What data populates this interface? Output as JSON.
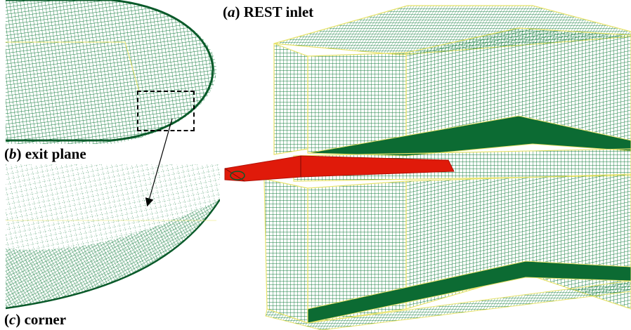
{
  "figure": {
    "panel_a": {
      "letter": "a",
      "caption": "REST inlet"
    },
    "panel_b": {
      "letter": "b",
      "caption": "exit plane"
    },
    "panel_c": {
      "letter": "c",
      "caption": "corner"
    }
  },
  "colors": {
    "mesh_green": "#0f7a3a",
    "mesh_dark": "#0a5a2a",
    "mesh_edge_yellow": "#e8e36a",
    "inlet_red": "#e01a0a",
    "background": "#ffffff"
  }
}
